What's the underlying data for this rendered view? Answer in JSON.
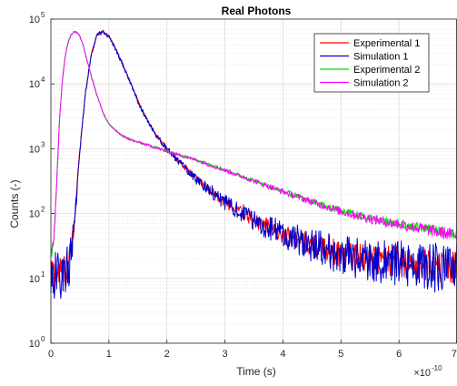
{
  "chart_data": {
    "type": "line",
    "title": "Real Photons",
    "xlabel": "Time (s)",
    "ylabel": "Counts (-)",
    "x_multiplier_label": "×10",
    "x_multiplier_exp": "-10",
    "xlim": [
      0,
      7
    ],
    "ylim": [
      1,
      100000
    ],
    "yscale": "log",
    "grid": true,
    "minor_grid": true,
    "legend_location": "top-right",
    "x_ticks": [
      0,
      1,
      2,
      3,
      4,
      5,
      6,
      7
    ],
    "y_ticks": [
      {
        "value": 1,
        "base": "10",
        "exp": "0"
      },
      {
        "value": 10,
        "base": "10",
        "exp": "1"
      },
      {
        "value": 100,
        "base": "10",
        "exp": "2"
      },
      {
        "value": 1000,
        "base": "10",
        "exp": "3"
      },
      {
        "value": 10000,
        "base": "10",
        "exp": "4"
      },
      {
        "value": 100000,
        "base": "10",
        "exp": "5"
      }
    ],
    "series": [
      {
        "name": "Experimental 1",
        "color": "#ff0000",
        "noise": 0.09,
        "x": [
          0,
          0.1,
          0.2,
          0.3,
          0.4,
          0.5,
          0.6,
          0.7,
          0.8,
          0.9,
          1.0,
          1.1,
          1.2,
          1.3,
          1.4,
          1.5,
          1.6,
          1.7,
          1.8,
          2.0,
          2.2,
          2.5,
          3.0,
          3.5,
          4.0,
          4.5,
          5.0,
          5.5,
          6.0,
          6.5,
          7.0
        ],
        "y": [
          12,
          12,
          13,
          14,
          60,
          1000,
          8000,
          30000,
          60000,
          64000,
          55000,
          38000,
          24000,
          15000,
          9000,
          5500,
          3500,
          2400,
          1700,
          1000,
          650,
          350,
          150,
          80,
          48,
          33,
          24,
          20,
          18,
          16,
          15
        ]
      },
      {
        "name": "Simulation 1",
        "color": "#0000cc",
        "noise": 0.13,
        "x": [
          0,
          0.1,
          0.2,
          0.3,
          0.4,
          0.5,
          0.6,
          0.7,
          0.8,
          0.9,
          1.0,
          1.1,
          1.2,
          1.3,
          1.4,
          1.5,
          1.6,
          1.7,
          1.8,
          2.0,
          2.2,
          2.5,
          3.0,
          3.5,
          4.0,
          4.5,
          5.0,
          5.5,
          6.0,
          6.5,
          7.0
        ],
        "y": [
          11,
          11,
          12,
          13,
          55,
          950,
          7800,
          29000,
          59000,
          63000,
          54000,
          37000,
          23500,
          14800,
          8900,
          5400,
          3450,
          2380,
          1680,
          990,
          640,
          345,
          148,
          79,
          47,
          32,
          23,
          19,
          17,
          15,
          14
        ]
      },
      {
        "name": "Experimental 2",
        "color": "#00dd00",
        "noise": 0.05,
        "x": [
          0,
          0.05,
          0.1,
          0.15,
          0.2,
          0.25,
          0.3,
          0.35,
          0.4,
          0.45,
          0.5,
          0.55,
          0.6,
          0.7,
          0.8,
          0.9,
          1.0,
          1.2,
          1.4,
          1.6,
          1.8,
          2.0,
          2.5,
          3.0,
          3.5,
          4.0,
          4.5,
          5.0,
          5.5,
          6.0,
          6.5,
          7.0
        ],
        "y": [
          22,
          40,
          300,
          3000,
          12000,
          28000,
          45000,
          58000,
          64000,
          63000,
          55000,
          42000,
          28000,
          13000,
          6500,
          3600,
          2400,
          1650,
          1350,
          1200,
          1050,
          920,
          680,
          470,
          320,
          220,
          155,
          110,
          85,
          70,
          58,
          48
        ]
      },
      {
        "name": "Simulation 2",
        "color": "#ff00ff",
        "noise": 0.06,
        "x": [
          0,
          0.05,
          0.1,
          0.15,
          0.2,
          0.25,
          0.3,
          0.35,
          0.4,
          0.45,
          0.5,
          0.55,
          0.6,
          0.7,
          0.8,
          0.9,
          1.0,
          1.2,
          1.4,
          1.6,
          1.8,
          2.0,
          2.5,
          3.0,
          3.5,
          4.0,
          4.5,
          5.0,
          5.5,
          6.0,
          6.5,
          7.0
        ],
        "y": [
          20,
          38,
          290,
          2900,
          11800,
          27500,
          44500,
          57500,
          63500,
          62500,
          54500,
          41500,
          27500,
          12800,
          6400,
          3550,
          2380,
          1640,
          1340,
          1190,
          1040,
          910,
          670,
          465,
          318,
          218,
          152,
          108,
          83,
          68,
          56,
          46
        ]
      }
    ]
  }
}
